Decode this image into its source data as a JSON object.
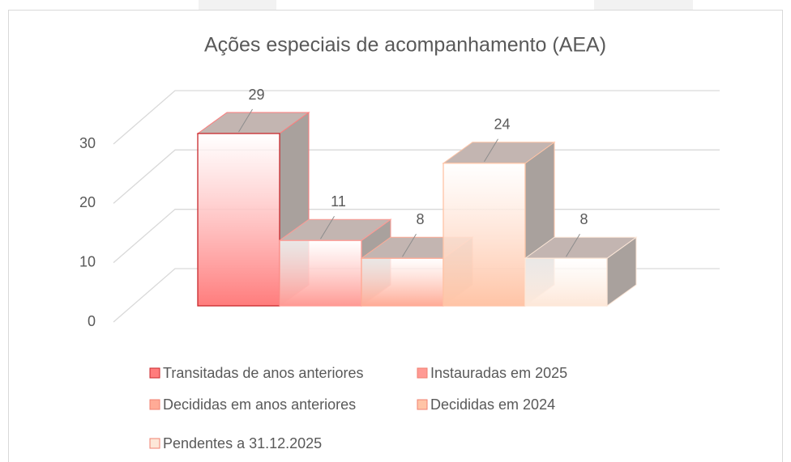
{
  "chart_data": {
    "type": "bar3d",
    "title": "Ações especiais de acompanhamento (AEA)",
    "series": [
      {
        "name": "Transitadas de anos anteriores",
        "color": "#ff7c7c",
        "values": [
          29
        ]
      },
      {
        "name": "Instauradas em 2025",
        "color": "#ff9a94",
        "values": [
          11
        ]
      },
      {
        "name": "Decididas em anos anteriores",
        "color": "#ffab96",
        "values": [
          8
        ]
      },
      {
        "name": "Decididas em 2024",
        "color": "#ffc4a6",
        "values": [
          24
        ]
      },
      {
        "name": "Pendentes a 31.12.2025",
        "color": "#fde7d8",
        "values": [
          8
        ]
      }
    ],
    "ylim": [
      0,
      30
    ],
    "yticks": [
      0,
      10,
      20,
      30
    ],
    "grid": true
  }
}
